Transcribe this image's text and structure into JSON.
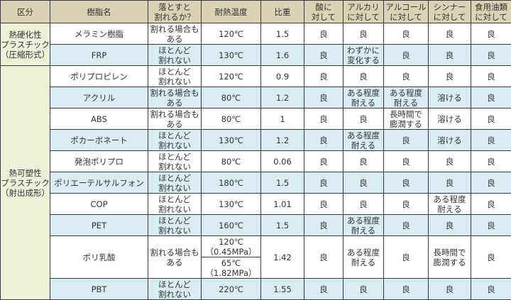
{
  "headers": [
    "区分",
    "樹脂名",
    "落とすと\n割れるか？",
    "耐熱温度",
    "比重",
    "酸に\n対して",
    "アルカリ\nに対して",
    "アルコール\nに対して",
    "シンナー\nに対して",
    "食用油類\nに対して"
  ],
  "colors": {
    "header": "#d9d3b3",
    "group": "#eef0da",
    "row_alt": "#d8ecf1",
    "row": "#ffffff",
    "border": "#3a3a3a"
  },
  "groups": [
    {
      "label": "熱硬化性\nプラスチック\n（圧縮形式）",
      "rows": [
        {
          "name": "メラミン樹脂",
          "drop": "割れる場合も\nある",
          "heat": [
            "120℃"
          ],
          "gravity": "1.5",
          "acid": "良",
          "alkali": "良",
          "alcohol": "良",
          "thinner": "良",
          "oil": "良"
        },
        {
          "name": "FRP",
          "drop": "ほとんど\n割れない",
          "heat": [
            "130℃"
          ],
          "gravity": "1.6",
          "acid": "良",
          "alkali": "わずかに\n変化する",
          "alcohol": "良",
          "thinner": "良",
          "oil": "良"
        }
      ]
    },
    {
      "label": "熱可塑性\nプラスチック\n（射出成形）",
      "rows": [
        {
          "name": "ポリプロピレン",
          "drop": "ほとんど\n割れない",
          "heat": [
            "120℃"
          ],
          "gravity": "0.9",
          "acid": "良",
          "alkali": "良",
          "alcohol": "良",
          "thinner": "良",
          "oil": "良"
        },
        {
          "name": "アクリル",
          "drop": "割れる場合も\nある",
          "heat": [
            "80℃"
          ],
          "gravity": "1.2",
          "acid": "良",
          "alkali": "ある程度\n耐える",
          "alcohol": "ある程度\n耐える",
          "thinner": "溶ける",
          "oil": "良"
        },
        {
          "name": "ABS",
          "drop": "割れる場合も\nある",
          "heat": [
            "80℃"
          ],
          "gravity": "1",
          "acid": "良",
          "alkali": "良",
          "alcohol": "長時間で\n膨潤する",
          "thinner": "溶ける",
          "oil": "良"
        },
        {
          "name": "ポカーボネート",
          "drop": "ほとんど\n割れない",
          "heat": [
            "130℃"
          ],
          "gravity": "1.2",
          "acid": "良",
          "alkali": "ある程度\n耐える",
          "alcohol": "良",
          "thinner": "溶ける",
          "oil": "良"
        },
        {
          "name": "発泡ポリプロ",
          "drop": "ほとんど\n割れない",
          "heat": [
            "80℃"
          ],
          "gravity": "0.06",
          "acid": "良",
          "alkali": "良",
          "alcohol": "良",
          "thinner": "良",
          "oil": "良"
        },
        {
          "name": "ポリエーテルサルフォン",
          "drop": "ほとんど\n割れない",
          "heat": [
            "180℃"
          ],
          "gravity": "1.5",
          "acid": "良",
          "alkali": "良",
          "alcohol": "良",
          "thinner": "良",
          "oil": "良"
        },
        {
          "name": "COP",
          "drop": "ほとんど\n割れない",
          "heat": [
            "130℃"
          ],
          "gravity": "1.01",
          "acid": "良",
          "alkali": "良",
          "alcohol": "良",
          "thinner": "ある程度\n耐える",
          "oil": "良"
        },
        {
          "name": "PET",
          "drop": "ほとんど\n割れない",
          "heat": [
            "160℃"
          ],
          "gravity": "1.5",
          "acid": "良",
          "alkali": "ある程度\n耐える",
          "alcohol": "良",
          "thinner": "良",
          "oil": "良"
        },
        {
          "name": "ポリ乳酸",
          "drop": "割れる場合も\nある",
          "heat": [
            "120℃\n（0.45MPa）",
            "65℃\n（1.82MPa）"
          ],
          "gravity": "1.42",
          "acid": "良",
          "alkali": "ある程度\n耐える",
          "alcohol": "良",
          "thinner": "長時間で\n膨潤する",
          "oil": "良"
        },
        {
          "name": "PBT",
          "drop": "ほとんど\n割れない",
          "heat": [
            "220℃"
          ],
          "gravity": "1.55",
          "acid": "良",
          "alkali": "良",
          "alcohol": "良",
          "thinner": "良",
          "oil": "良"
        }
      ]
    }
  ]
}
